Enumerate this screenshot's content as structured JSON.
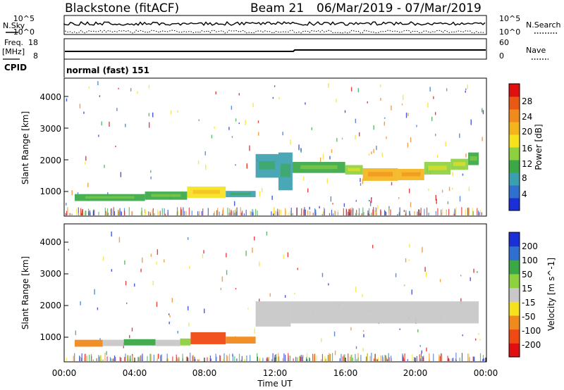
{
  "header": {
    "station": "Blackstone (fitACF)",
    "beam": "Beam 21",
    "dates": "06/Mar/2019 - 07/Mar/2019"
  },
  "nsky_panel": {
    "left_label": "N.Sky",
    "right_label": "N.Search",
    "left_ticks": [
      "10^5",
      "10^0"
    ],
    "right_ticks": [
      "10^5",
      "10^0"
    ]
  },
  "freq_panel": {
    "left_label_1": "Freq.",
    "left_label_2": "[MHz]",
    "right_label": "Nave",
    "left_ticks": [
      "18",
      "8"
    ],
    "right_ticks": [
      "60",
      "0"
    ]
  },
  "cpid_panel": {
    "label": "CPID",
    "mode": "normal (fast) 151"
  },
  "colors": {
    "scale_blue": "#1a2fd8",
    "scale_green": "#3aa845",
    "scale_yellow": "#f5e21c",
    "scale_orange": "#f08a1c",
    "scale_red": "#e01010",
    "ground_grey": "#c8c8c8"
  },
  "chart_data": [
    {
      "type": "heatmap",
      "name": "power",
      "ylabel": "Slant Range [km]",
      "y_ticks": [
        "1000",
        "2000",
        "3000",
        "4000"
      ],
      "ylim": [
        180,
        4560
      ],
      "xlim": [
        0,
        24
      ],
      "colorbar_label": "Power [dB]",
      "colorbar_ticks": [
        "4",
        "8",
        "12",
        "16",
        "20",
        "24",
        "28"
      ],
      "colorbar_range": [
        0,
        30
      ],
      "colors": [
        "#1a2fd8",
        "#2f6fd0",
        "#3aa0b0",
        "#3aa845",
        "#8dd13e",
        "#f5e21c",
        "#f5b41c",
        "#f08a1c",
        "#e85a14",
        "#e01010"
      ],
      "bands": [
        {
          "t0": 0.6,
          "t1": 4.6,
          "r0": 660,
          "r1": 880,
          "level": 9
        },
        {
          "t0": 4.6,
          "t1": 7.0,
          "r0": 700,
          "r1": 960,
          "level": 10
        },
        {
          "t0": 7.0,
          "t1": 9.2,
          "r0": 760,
          "r1": 1120,
          "level": 15
        },
        {
          "t0": 9.2,
          "t1": 10.9,
          "r0": 780,
          "r1": 980,
          "level": 7
        },
        {
          "t0": 10.9,
          "t1": 12.2,
          "r0": 1400,
          "r1": 2150,
          "level": 6
        },
        {
          "t0": 12.2,
          "t1": 13.0,
          "r0": 1000,
          "r1": 2200,
          "level": 6
        },
        {
          "t0": 13.0,
          "t1": 16.0,
          "r0": 1550,
          "r1": 1900,
          "level": 10
        },
        {
          "t0": 16.0,
          "t1": 17.0,
          "r0": 1500,
          "r1": 1800,
          "level": 12
        },
        {
          "t0": 17.0,
          "t1": 19.0,
          "r0": 1300,
          "r1": 1700,
          "level": 20
        },
        {
          "t0": 19.0,
          "t1": 20.5,
          "r0": 1320,
          "r1": 1680,
          "level": 20
        },
        {
          "t0": 20.5,
          "t1": 22.0,
          "r0": 1500,
          "r1": 1900,
          "level": 14
        },
        {
          "t0": 22.0,
          "t1": 23.0,
          "r0": 1650,
          "r1": 2000,
          "level": 12
        },
        {
          "t0": 23.0,
          "t1": 23.6,
          "r0": 1800,
          "r1": 2200,
          "level": 10
        }
      ]
    },
    {
      "type": "heatmap",
      "name": "velocity",
      "ylabel": "Slant Range [km]",
      "y_ticks": [
        "1000",
        "2000",
        "3000",
        "4000"
      ],
      "ylim": [
        180,
        4560
      ],
      "xlim": [
        0,
        24
      ],
      "xlabel": "Time UT",
      "x_ticks": [
        "00:00",
        "04:00",
        "08:00",
        "12:00",
        "16:00",
        "20:00",
        "00:00"
      ],
      "colorbar_label": "Velocity [m s^-1]",
      "colorbar_ticks": [
        "200",
        "100",
        "50",
        "15",
        "-15",
        "-50",
        "-100",
        "-200"
      ],
      "colorbar_range": [
        -250,
        250
      ],
      "colors": [
        "#e01010",
        "#f04a14",
        "#f08a1c",
        "#f5e21c",
        "#c8c8c8",
        "#8dd13e",
        "#3aa845",
        "#2f6fd0",
        "#1a2fd8"
      ],
      "bands": [
        {
          "t0": 0.6,
          "t1": 2.2,
          "r0": 660,
          "r1": 880,
          "value": -60
        },
        {
          "t0": 2.2,
          "t1": 3.4,
          "r0": 680,
          "r1": 880,
          "value": 0
        },
        {
          "t0": 3.4,
          "t1": 5.2,
          "r0": 700,
          "r1": 900,
          "value": 40
        },
        {
          "t0": 5.2,
          "t1": 6.6,
          "r0": 680,
          "r1": 880,
          "value": 0
        },
        {
          "t0": 6.6,
          "t1": 7.2,
          "r0": 700,
          "r1": 920,
          "value": 30
        },
        {
          "t0": 7.2,
          "t1": 9.2,
          "r0": 740,
          "r1": 1120,
          "value": -120
        },
        {
          "t0": 9.2,
          "t1": 10.9,
          "r0": 760,
          "r1": 980,
          "value": -40
        },
        {
          "t0": 10.9,
          "t1": 12.9,
          "r0": 1300,
          "r1": 2100,
          "value": 0
        },
        {
          "t0": 12.9,
          "t1": 23.6,
          "r0": 1400,
          "r1": 2100,
          "value": 0
        }
      ]
    }
  ]
}
